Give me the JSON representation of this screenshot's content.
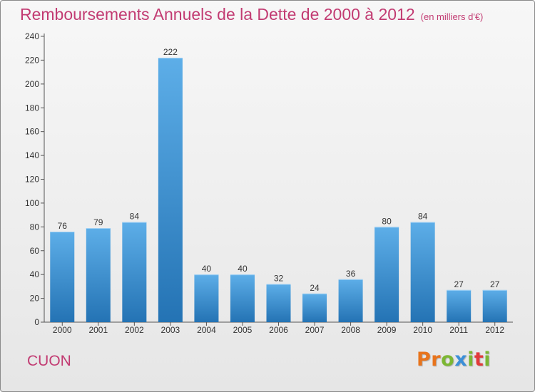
{
  "header": {
    "title": "Remboursements Annuels de la Dette de 2000 à 2012",
    "subtitle": "(en milliers d'€)"
  },
  "footer": {
    "commune": "CUON",
    "brand": "Proxiti"
  },
  "colors": {
    "title": "#c23b72",
    "bar_top": "#5daee8",
    "bar_bottom": "#2473b4",
    "brand_letters": [
      "#e8741c",
      "#e8741c",
      "#7cb733",
      "#3b8fd8",
      "#7cb733",
      "#e23a3a",
      "#7cb733"
    ]
  },
  "chart_data": {
    "type": "bar",
    "title": "Remboursements Annuels de la Dette de 2000 à 2012",
    "subtitle": "(en milliers d'€)",
    "xlabel": "",
    "ylabel": "",
    "categories": [
      "2000",
      "2001",
      "2002",
      "2003",
      "2004",
      "2005",
      "2006",
      "2007",
      "2008",
      "2009",
      "2010",
      "2011",
      "2012"
    ],
    "values": [
      76,
      79,
      84,
      222,
      40,
      40,
      32,
      24,
      36,
      80,
      84,
      27,
      27
    ],
    "ylim": [
      0,
      240
    ],
    "yticks": [
      0,
      20,
      40,
      60,
      80,
      100,
      120,
      140,
      160,
      180,
      200,
      220,
      240
    ],
    "grid": false,
    "data_labels": true
  }
}
